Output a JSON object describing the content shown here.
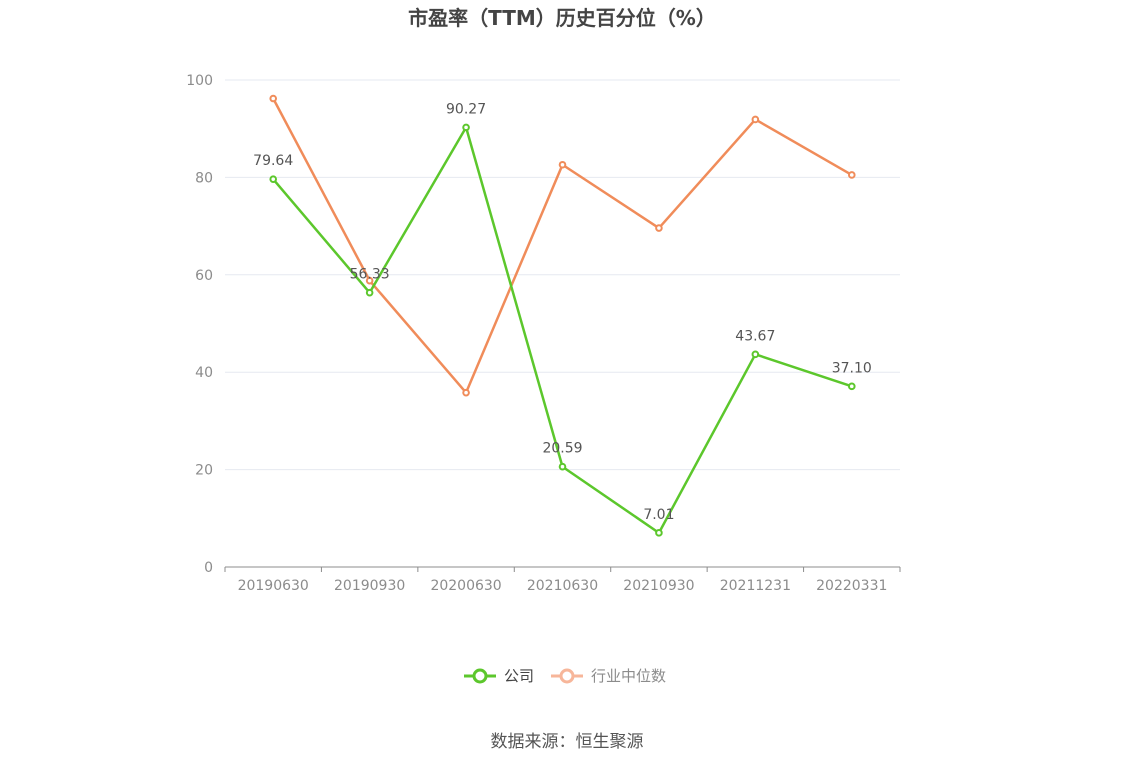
{
  "chart_data": {
    "type": "line",
    "title": "市盈率（TTM）历史百分位（%）",
    "categories": [
      "20190630",
      "20190930",
      "20200630",
      "20210630",
      "20210930",
      "20211231",
      "20220331"
    ],
    "ylim": [
      0,
      100
    ],
    "yticks": [
      0,
      20,
      40,
      60,
      80,
      100
    ],
    "grid": true,
    "legend_position": "bottom-center",
    "series": [
      {
        "name": "公司",
        "color": "#5cc72c",
        "values": [
          79.64,
          56.33,
          90.27,
          20.59,
          7.01,
          43.67,
          37.1
        ],
        "labels": [
          "79.64",
          "56.33",
          "90.27",
          "20.59",
          "7.01",
          "43.67",
          "37.10"
        ]
      },
      {
        "name": "行业中位数",
        "color": "#f08c5a",
        "values": [
          96.2,
          58.8,
          35.8,
          82.6,
          69.6,
          91.9,
          80.5
        ]
      }
    ]
  },
  "legend": {
    "company_label": "公司",
    "industry_label": "行业中位数",
    "industry_legend_color": "#f7b69a"
  },
  "source": "数据来源：恒生聚源"
}
